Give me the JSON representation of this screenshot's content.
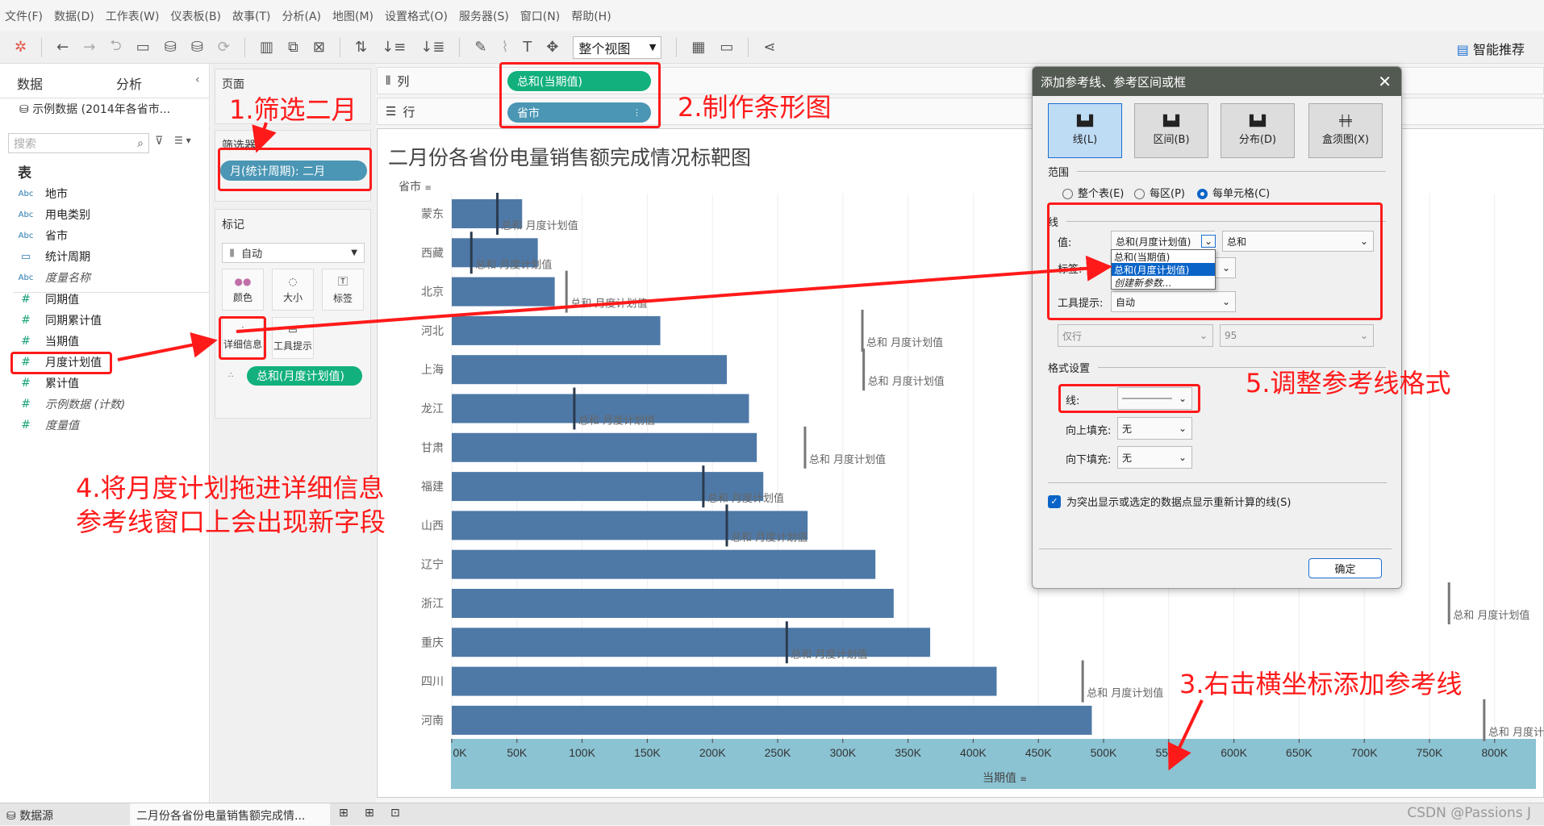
{
  "menu": [
    "文件(F)",
    "数据(D)",
    "工作表(W)",
    "仪表板(B)",
    "故事(T)",
    "分析(A)",
    "地图(M)",
    "设置格式(O)",
    "服务器(S)",
    "窗口(N)",
    "帮助(H)"
  ],
  "toolbar": {
    "view_select": "整个视图",
    "smart_recommend": "智能推荐"
  },
  "data_pane": {
    "tab_data": "数据",
    "tab_analysis": "分析",
    "datasource": "示例数据 (2014年各省市...",
    "search_placeholder": "搜索",
    "section": "表",
    "dimensions": [
      {
        "type": "Abc",
        "name": "地市"
      },
      {
        "type": "Abc",
        "name": "用电类别"
      },
      {
        "type": "Abc",
        "name": "省市"
      },
      {
        "type": "date",
        "name": "统计周期"
      },
      {
        "type": "Abc",
        "name": "度量名称",
        "italic": true
      }
    ],
    "measures": [
      {
        "name": "同期值"
      },
      {
        "name": "同期累计值"
      },
      {
        "name": "当期值"
      },
      {
        "name": "月度计划值"
      },
      {
        "name": "累计值"
      },
      {
        "name": "示例数据 (计数)",
        "italic": true
      },
      {
        "name": "度量值",
        "italic": true
      }
    ]
  },
  "cards": {
    "pages": "页面",
    "filters": "筛选器",
    "filter_pill": "月(统计周期): 二月",
    "marks": "标记",
    "mark_type": "自动",
    "mark_buttons": [
      "颜色",
      "大小",
      "标签",
      "详细信息",
      "工具提示"
    ],
    "detail_pill": "总和(月度计划值)"
  },
  "shelves": {
    "columns_label": "列",
    "columns_pill": "总和(当期值)",
    "rows_label": "行",
    "rows_pill": "省市"
  },
  "colors": {
    "bar": "#4e79a7",
    "green_pill": "#12b07d",
    "blue_pill": "#4a96b4",
    "axis_band": "#8bc3d3",
    "annotation": "#ff1a1a",
    "dialog_title": "#535a52"
  },
  "chart_data": {
    "type": "bar",
    "title": "二月份各省份电量销售额完成情况标靶图",
    "ylabel": "省市",
    "xlabel": "当期值",
    "categories": [
      "蒙东",
      "西藏",
      "北京",
      "河北",
      "上海",
      "龙江",
      "甘肃",
      "福建",
      "山西",
      "辽宁",
      "浙江",
      "重庆",
      "四川",
      "河南"
    ],
    "series": [
      {
        "name": "当期值",
        "values": [
          54,
          66,
          79,
          160,
          211,
          228,
          234,
          239,
          273,
          325,
          339,
          367,
          418,
          491
        ]
      }
    ],
    "reference_lines": {
      "label": "总和 月度计划值",
      "values": [
        35,
        15,
        88,
        315,
        316,
        94,
        271,
        193,
        211,
        null,
        765,
        257,
        484,
        792
      ]
    },
    "value_unit": "K",
    "xlim": [
      0,
      825
    ],
    "xticks": [
      "0K",
      "50K",
      "100K",
      "150K",
      "200K",
      "250K",
      "300K",
      "350K",
      "400K",
      "450K",
      "500K",
      "550K",
      "600K",
      "650K",
      "700K",
      "750K",
      "800K"
    ],
    "grid": "vertical"
  },
  "dialog": {
    "title": "添加参考线、参考区间或框",
    "types": [
      "线(L)",
      "区间(B)",
      "分布(D)",
      "盒须图(X)"
    ],
    "scope_label": "范围",
    "scope_options": [
      "整个表(E)",
      "每区(P)",
      "每单元格(C)"
    ],
    "scope_selected": 2,
    "line_section": "线",
    "value_label": "值:",
    "value_selected": "总和(月度计划值)",
    "aggregation": "总和",
    "value_options": [
      "总和(当期值)",
      "总和(月度计划值)",
      "创建新参数..."
    ],
    "label_label": "标签:",
    "tooltip_label": "工具提示:",
    "tooltip_value": "自动",
    "ci_scope": "仅行",
    "ci_value": "95",
    "format_section": "格式设置",
    "line_label": "线:",
    "fill_above_label": "向上填充:",
    "fill_above": "无",
    "fill_below_label": "向下填充:",
    "fill_below": "无",
    "recalc_checkbox": "为突出显示或选定的数据点显示重新计算的线(S)",
    "ok": "确定"
  },
  "annotations": {
    "step1": "1.筛选二月",
    "step2": "2.制作条形图",
    "step3": "3.右击横坐标添加参考线",
    "step4_line1": "4.将月度计划拖进详细信息",
    "step4_line2": "参考线窗口上会出现新字段",
    "step5": "5.调整参考线格式"
  },
  "statusbar": {
    "datasource_tab": "数据源",
    "sheet_tab": "二月份各省份电量销售额完成情...",
    "watermark": "CSDN @Passions J"
  }
}
